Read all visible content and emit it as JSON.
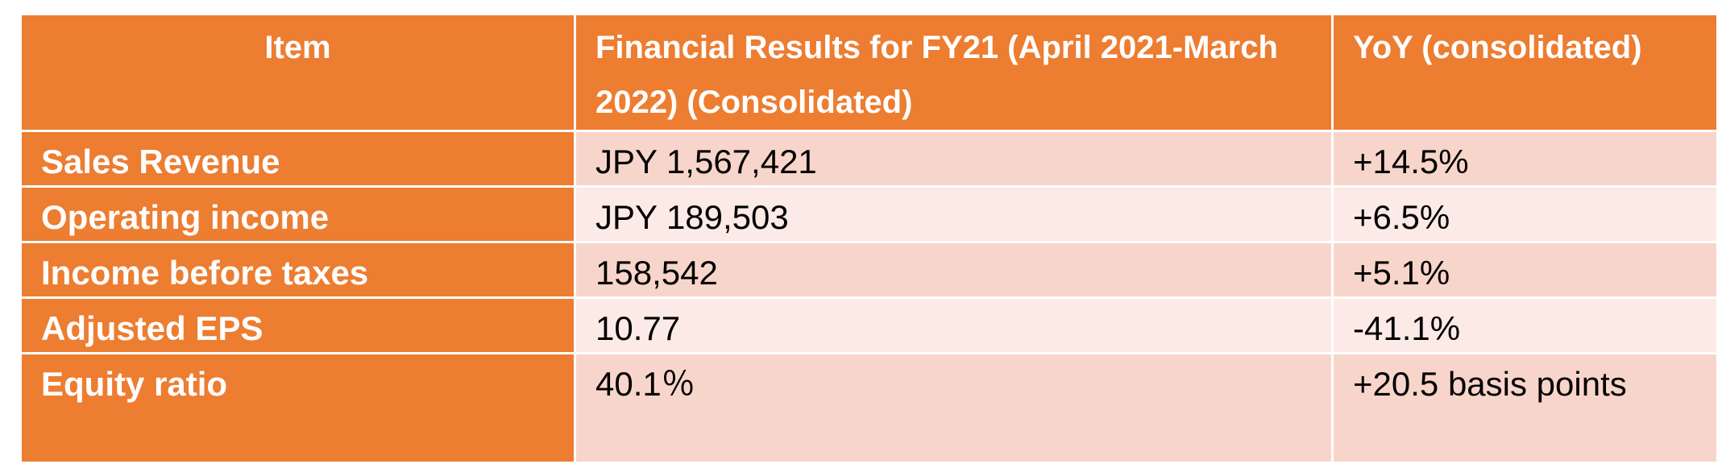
{
  "table": {
    "headers": {
      "item": "Item",
      "results": "Financial Results for FY21 (April 2021-March 2022) (Consolidated)",
      "yoy": "YoY (consolidated)"
    },
    "rows": [
      {
        "item": "Sales Revenue",
        "value": "JPY 1,567,421",
        "yoy": "+14.5%"
      },
      {
        "item": "Operating income",
        "value": "JPY 189,503",
        "yoy": "+6.5%"
      },
      {
        "item": "Income before taxes",
        "value": "158,542",
        "yoy": "+5.1%"
      },
      {
        "item": "Adjusted EPS",
        "value": "10.77",
        "yoy": "-41.1%"
      },
      {
        "item": "Equity ratio",
        "value": "40.1％",
        "yoy": "+20.5 basis points"
      }
    ]
  },
  "colors": {
    "header_bg": "#ED7D31",
    "label_bg": "#ED7D31",
    "row_dark_bg": "#F8D5CB",
    "row_light_bg": "#FCEAE6",
    "border": "#FFFFFF"
  }
}
